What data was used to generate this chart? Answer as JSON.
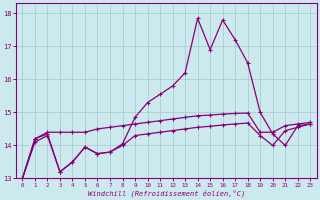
{
  "xlabel": "Windchill (Refroidissement éolien,°C)",
  "background_color": "#cce9ed",
  "grid_color": "#aacdd4",
  "line_color": "#880077",
  "xlim": [
    -0.5,
    23.5
  ],
  "ylim": [
    13.0,
    18.3
  ],
  "yticks": [
    13,
    14,
    15,
    16,
    17,
    18
  ],
  "xticks": [
    0,
    1,
    2,
    3,
    4,
    5,
    6,
    7,
    8,
    9,
    10,
    11,
    12,
    13,
    14,
    15,
    16,
    17,
    18,
    19,
    20,
    21,
    22,
    23
  ],
  "line_spiky_x": [
    0,
    1,
    2,
    3,
    4,
    5,
    6,
    7,
    8,
    9,
    10,
    11,
    12,
    13,
    14,
    15,
    16,
    17,
    18,
    19,
    20,
    21,
    22,
    23
  ],
  "line_spiky_y": [
    13.0,
    14.2,
    14.35,
    13.2,
    13.5,
    13.95,
    13.75,
    13.8,
    14.05,
    14.85,
    15.3,
    15.55,
    15.8,
    16.2,
    17.85,
    16.9,
    17.8,
    17.2,
    16.5,
    15.0,
    14.35,
    14.0,
    14.6,
    14.65
  ],
  "line_mid_x": [
    0,
    1,
    2,
    3,
    4,
    5,
    6,
    7,
    8,
    9,
    10,
    11,
    12,
    13,
    14,
    15,
    16,
    17,
    18,
    19,
    20,
    21,
    22,
    23
  ],
  "line_mid_y": [
    13.0,
    14.2,
    14.4,
    14.4,
    14.4,
    14.4,
    14.5,
    14.55,
    14.6,
    14.65,
    14.7,
    14.75,
    14.8,
    14.85,
    14.9,
    14.92,
    14.95,
    14.97,
    14.98,
    14.4,
    14.4,
    14.6,
    14.65,
    14.7
  ],
  "line_low_x": [
    0,
    1,
    2,
    3,
    4,
    5,
    6,
    7,
    8,
    9,
    10,
    11,
    12,
    13,
    14,
    15,
    16,
    17,
    18,
    19,
    20,
    21,
    22,
    23
  ],
  "line_low_y": [
    13.0,
    14.1,
    14.3,
    13.2,
    13.5,
    13.95,
    13.75,
    13.8,
    14.0,
    14.3,
    14.35,
    14.4,
    14.45,
    14.5,
    14.55,
    14.58,
    14.62,
    14.65,
    14.68,
    14.3,
    14.0,
    14.45,
    14.55,
    14.65
  ]
}
